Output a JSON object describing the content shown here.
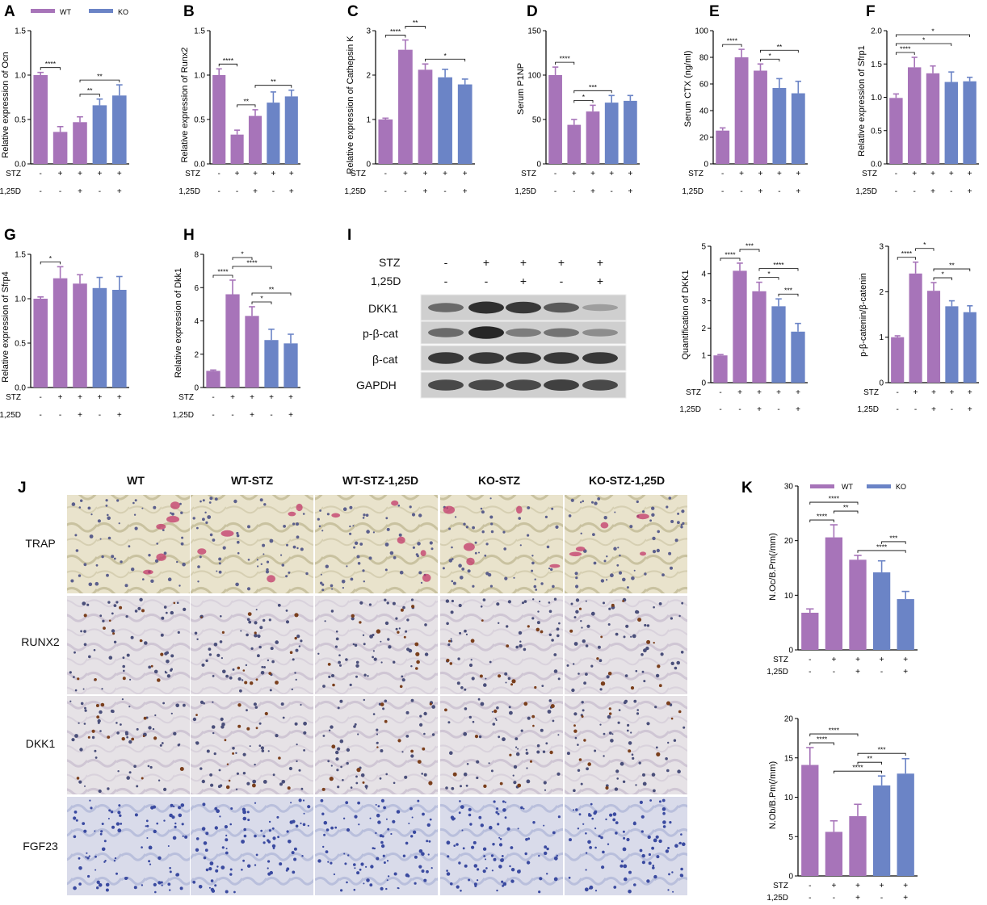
{
  "colors": {
    "wt": "#a774b9",
    "ko": "#6b84c6"
  },
  "legend": {
    "wt": "WT",
    "ko": "KO"
  },
  "condition_labels": {
    "stz": "STZ",
    "d": "1,25D"
  },
  "conditions": {
    "stz": [
      "-",
      "+",
      "+",
      "+",
      "+"
    ],
    "d": [
      "-",
      "-",
      "+",
      "-",
      "+"
    ]
  },
  "chart_data": [
    {
      "panel": "A",
      "type": "bar",
      "ylabel": "Relative expression of Ocn",
      "ylim": [
        0,
        1.5
      ],
      "ticks": [
        0.0,
        0.5,
        1.0,
        1.5
      ],
      "values": [
        1.0,
        0.36,
        0.47,
        0.66,
        0.77
      ],
      "errors": [
        0.03,
        0.06,
        0.06,
        0.07,
        0.12
      ],
      "groups": [
        "WT",
        "WT",
        "WT",
        "KO",
        "KO"
      ],
      "sig": [
        {
          "a": 0,
          "b": 1,
          "label": "****"
        },
        {
          "a": 2,
          "b": 3,
          "label": "**"
        },
        {
          "a": 2,
          "b": 4,
          "label": "**"
        }
      ]
    },
    {
      "panel": "B",
      "type": "bar",
      "ylabel": "Relative expression of Runx2",
      "ylim": [
        0,
        1.5
      ],
      "ticks": [
        0.0,
        0.5,
        1.0,
        1.5
      ],
      "values": [
        1.0,
        0.33,
        0.54,
        0.69,
        0.76
      ],
      "errors": [
        0.07,
        0.05,
        0.07,
        0.12,
        0.07
      ],
      "groups": [
        "WT",
        "WT",
        "WT",
        "KO",
        "KO"
      ],
      "sig": [
        {
          "a": 0,
          "b": 1,
          "label": "****"
        },
        {
          "a": 1,
          "b": 2,
          "label": "**"
        },
        {
          "a": 2,
          "b": 4,
          "label": "**"
        }
      ]
    },
    {
      "panel": "C",
      "type": "bar",
      "ylabel": "Relative expression of Cathepsin K",
      "ylim": [
        0,
        3
      ],
      "ticks": [
        0,
        1,
        2,
        3
      ],
      "values": [
        1.0,
        2.57,
        2.12,
        1.95,
        1.79
      ],
      "errors": [
        0.03,
        0.22,
        0.13,
        0.18,
        0.12
      ],
      "groups": [
        "WT",
        "WT",
        "WT",
        "KO",
        "KO"
      ],
      "sig": [
        {
          "a": 0,
          "b": 1,
          "label": "****"
        },
        {
          "a": 1,
          "b": 2,
          "label": "**"
        },
        {
          "a": 2,
          "b": 4,
          "label": "*"
        }
      ]
    },
    {
      "panel": "D",
      "type": "bar",
      "ylabel": "Serum P1NP",
      "ylim": [
        0,
        150
      ],
      "ticks": [
        0,
        50,
        100,
        150
      ],
      "values": [
        100,
        44,
        59,
        69,
        71
      ],
      "errors": [
        9,
        6,
        7,
        8,
        6
      ],
      "groups": [
        "WT",
        "WT",
        "WT",
        "KO",
        "KO"
      ],
      "sig": [
        {
          "a": 0,
          "b": 1,
          "label": "****"
        },
        {
          "a": 1,
          "b": 2,
          "label": "*"
        },
        {
          "a": 1,
          "b": 3,
          "label": "***"
        }
      ]
    },
    {
      "panel": "E",
      "type": "bar",
      "ylabel": "Serum CTX (ng/ml)",
      "ylim": [
        0,
        100
      ],
      "ticks": [
        0,
        20,
        40,
        60,
        80,
        100
      ],
      "values": [
        25,
        80,
        70,
        57,
        53
      ],
      "errors": [
        2,
        6,
        5,
        7,
        9
      ],
      "groups": [
        "WT",
        "WT",
        "WT",
        "KO",
        "KO"
      ],
      "sig": [
        {
          "a": 0,
          "b": 1,
          "label": "****"
        },
        {
          "a": 2,
          "b": 3,
          "label": "*"
        },
        {
          "a": 2,
          "b": 4,
          "label": "**"
        }
      ]
    },
    {
      "panel": "F",
      "type": "bar",
      "ylabel": "Relative expression of Sfrp1",
      "ylim": [
        0,
        2.0
      ],
      "ticks": [
        0.0,
        0.5,
        1.0,
        1.5,
        2.0
      ],
      "values": [
        0.99,
        1.45,
        1.36,
        1.23,
        1.24
      ],
      "errors": [
        0.06,
        0.15,
        0.11,
        0.15,
        0.06
      ],
      "groups": [
        "WT",
        "WT",
        "WT",
        "KO",
        "KO"
      ],
      "sig": [
        {
          "a": 0,
          "b": 1,
          "label": "****"
        },
        {
          "a": 0,
          "b": 3,
          "label": "*"
        },
        {
          "a": 0,
          "b": 4,
          "label": "*"
        }
      ]
    },
    {
      "panel": "G",
      "type": "bar",
      "ylabel": "Relative expression of Sfrp4",
      "ylim": [
        0,
        1.5
      ],
      "ticks": [
        0.0,
        0.5,
        1.0,
        1.5
      ],
      "values": [
        1.0,
        1.23,
        1.17,
        1.12,
        1.1
      ],
      "errors": [
        0.02,
        0.13,
        0.1,
        0.12,
        0.15
      ],
      "groups": [
        "WT",
        "WT",
        "WT",
        "KO",
        "KO"
      ],
      "sig": [
        {
          "a": 0,
          "b": 1,
          "label": "*"
        }
      ]
    },
    {
      "panel": "H",
      "type": "bar",
      "ylabel": "Relative expression of Dkk1",
      "ylim": [
        0,
        8
      ],
      "ticks": [
        0,
        2,
        4,
        6,
        8
      ],
      "values": [
        1.0,
        5.6,
        4.3,
        2.85,
        2.65
      ],
      "errors": [
        0.05,
        0.85,
        0.55,
        0.65,
        0.55
      ],
      "groups": [
        "WT",
        "WT",
        "WT",
        "KO",
        "KO"
      ],
      "sig": [
        {
          "a": 0,
          "b": 1,
          "label": "****"
        },
        {
          "a": 1,
          "b": 3,
          "label": "****"
        },
        {
          "a": 1,
          "b": 2,
          "label": "*"
        },
        {
          "a": 2,
          "b": 3,
          "label": "*"
        },
        {
          "a": 2,
          "b": 4,
          "label": "**"
        }
      ]
    },
    {
      "panel": "I-DKK1",
      "type": "bar",
      "ylabel": "Quantification of DKK1",
      "ylim": [
        0,
        5
      ],
      "ticks": [
        0,
        1,
        2,
        3,
        4,
        5
      ],
      "values": [
        1.0,
        4.1,
        3.35,
        2.8,
        1.87
      ],
      "errors": [
        0.03,
        0.28,
        0.33,
        0.27,
        0.3
      ],
      "groups": [
        "WT",
        "WT",
        "WT",
        "KO",
        "KO"
      ],
      "sig": [
        {
          "a": 0,
          "b": 1,
          "label": "****"
        },
        {
          "a": 1,
          "b": 2,
          "label": "***"
        },
        {
          "a": 2,
          "b": 3,
          "label": "*"
        },
        {
          "a": 3,
          "b": 4,
          "label": "***"
        },
        {
          "a": 2,
          "b": 4,
          "label": "****"
        }
      ]
    },
    {
      "panel": "I-pbcat",
      "type": "bar",
      "ylabel": "p-β-catenin/β-catenin",
      "ylim": [
        0,
        3
      ],
      "ticks": [
        0,
        1,
        2,
        3
      ],
      "values": [
        1.0,
        2.4,
        2.02,
        1.68,
        1.55
      ],
      "errors": [
        0.03,
        0.25,
        0.18,
        0.12,
        0.14
      ],
      "groups": [
        "WT",
        "WT",
        "WT",
        "KO",
        "KO"
      ],
      "sig": [
        {
          "a": 0,
          "b": 1,
          "label": "****"
        },
        {
          "a": 1,
          "b": 2,
          "label": "*"
        },
        {
          "a": 2,
          "b": 3,
          "label": "*"
        },
        {
          "a": 2,
          "b": 4,
          "label": "**"
        }
      ]
    },
    {
      "panel": "K-Oc",
      "type": "bar",
      "ylabel": "N.Oc/B.Pm(/mm)",
      "ylim": [
        0,
        30
      ],
      "ticks": [
        0,
        10,
        20,
        30
      ],
      "values": [
        6.8,
        20.6,
        16.5,
        14.2,
        9.3
      ],
      "errors": [
        0.7,
        2.3,
        0.8,
        2.1,
        1.4
      ],
      "groups": [
        "WT",
        "WT",
        "WT",
        "KO",
        "KO"
      ],
      "sig": [
        {
          "a": 0,
          "b": 1,
          "label": "****"
        },
        {
          "a": 1,
          "b": 2,
          "label": "**"
        },
        {
          "a": 0,
          "b": 2,
          "label": "****"
        },
        {
          "a": 2,
          "b": 4,
          "label": "****"
        },
        {
          "a": 3,
          "b": 4,
          "label": "***"
        }
      ]
    },
    {
      "panel": "K-Ob",
      "type": "bar",
      "ylabel": "N.Ob/B.Pm(/mm)",
      "ylim": [
        0,
        20
      ],
      "ticks": [
        0,
        5,
        10,
        15,
        20
      ],
      "values": [
        14.1,
        5.6,
        7.6,
        11.5,
        13.0
      ],
      "errors": [
        2.2,
        1.4,
        1.5,
        1.2,
        1.9
      ],
      "groups": [
        "WT",
        "WT",
        "WT",
        "KO",
        "KO"
      ],
      "sig": [
        {
          "a": 0,
          "b": 1,
          "label": "****"
        },
        {
          "a": 1,
          "b": 3,
          "label": "****"
        },
        {
          "a": 0,
          "b": 2,
          "label": "****"
        },
        {
          "a": 2,
          "b": 3,
          "label": "**"
        },
        {
          "a": 2,
          "b": 4,
          "label": "***"
        }
      ]
    }
  ],
  "panel_letters": [
    "A",
    "B",
    "C",
    "D",
    "E",
    "F",
    "G",
    "H",
    "I",
    "J",
    "K"
  ],
  "blot": {
    "lane_labels": {
      "stz": "STZ",
      "d": "1,25D"
    },
    "rows": [
      "DKK1",
      "p-β-cat",
      "β-cat",
      "GAPDH"
    ],
    "intensity": [
      [
        0.55,
        0.9,
        0.85,
        0.65,
        0.25
      ],
      [
        0.55,
        0.95,
        0.45,
        0.5,
        0.35
      ],
      [
        0.85,
        0.85,
        0.85,
        0.85,
        0.85
      ],
      [
        0.75,
        0.75,
        0.75,
        0.8,
        0.75
      ]
    ]
  },
  "histology": {
    "columns": [
      "WT",
      "WT-STZ",
      "WT-STZ-1,25D",
      "KO-STZ",
      "KO-STZ-1,25D"
    ],
    "rows": [
      "TRAP",
      "RUNX2",
      "DKK1",
      "FGF23"
    ],
    "row_stain": [
      "trap",
      "ihc",
      "ihc",
      "he"
    ]
  }
}
